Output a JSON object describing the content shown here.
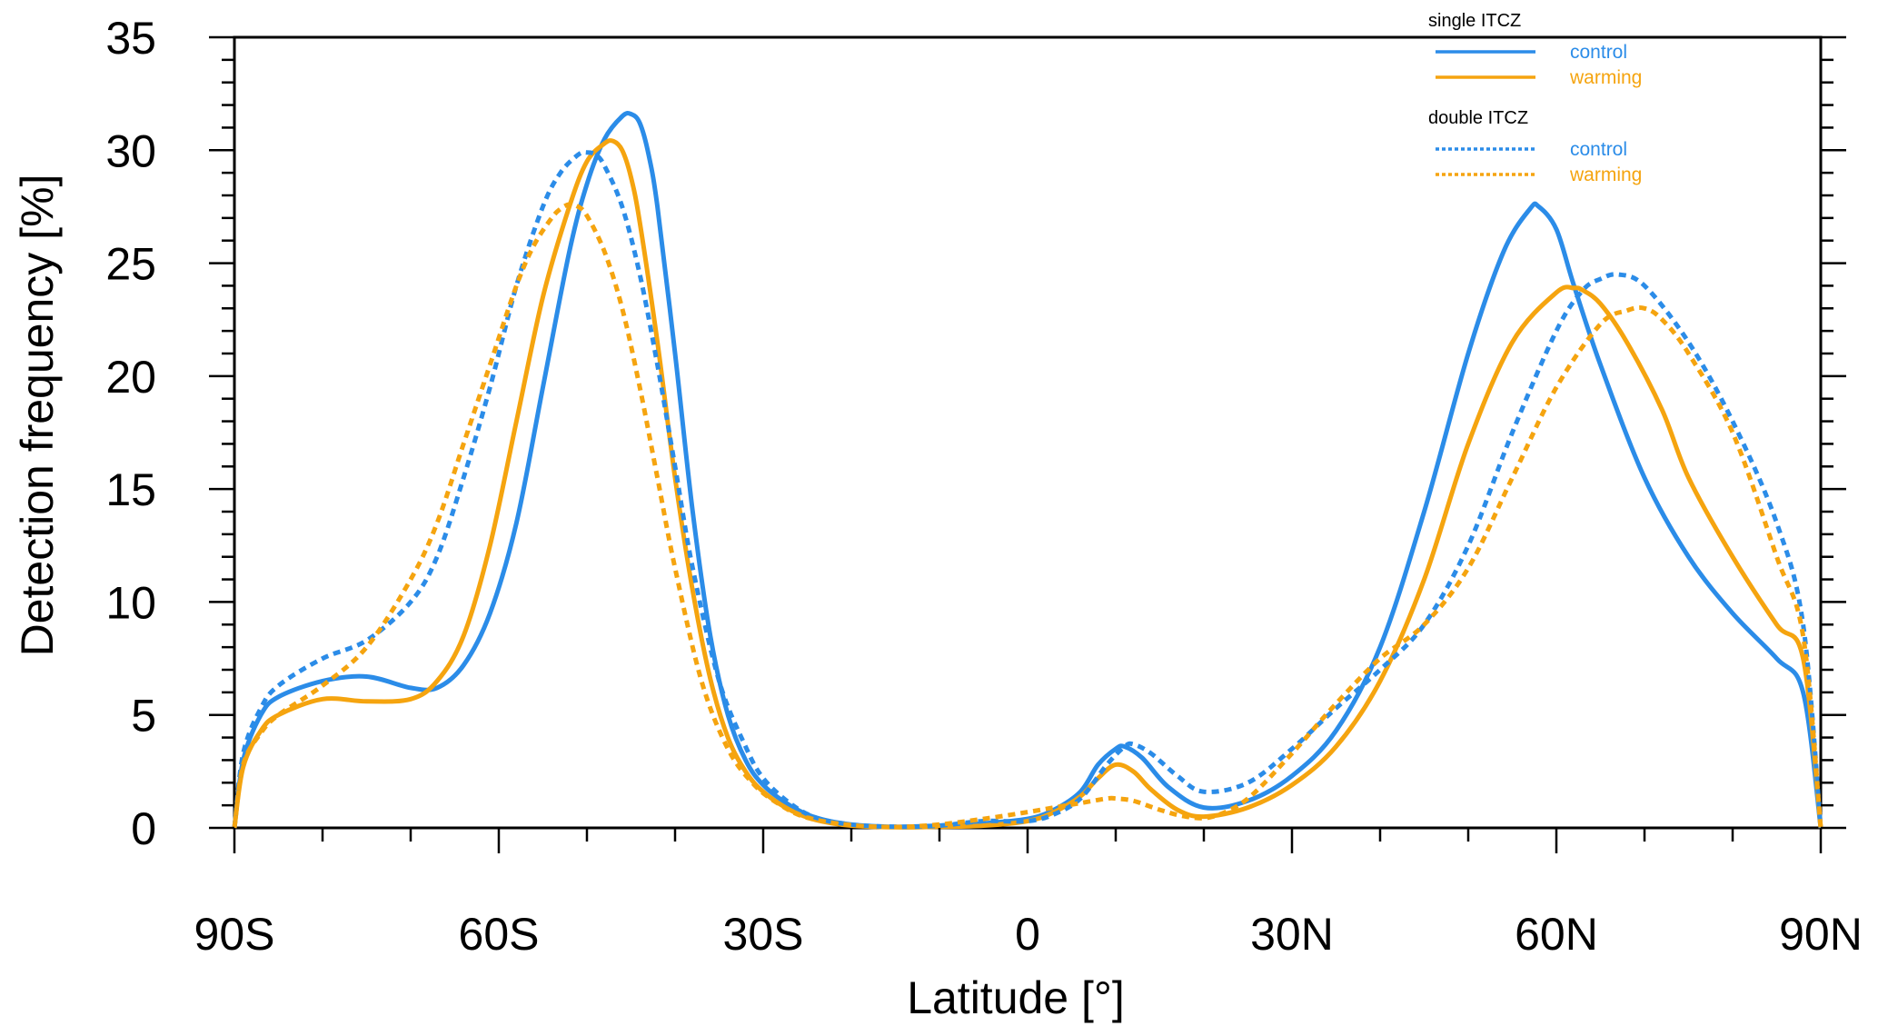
{
  "chart_data": {
    "type": "line",
    "xlabel": "Latitude [°]",
    "ylabel": "Detection frequency [%]",
    "xlim": [
      -90,
      90
    ],
    "ylim": [
      0,
      35
    ],
    "x_ticks": [
      {
        "value": -90,
        "label": "90S"
      },
      {
        "value": -60,
        "label": "60S"
      },
      {
        "value": -30,
        "label": "30S"
      },
      {
        "value": 0,
        "label": "0"
      },
      {
        "value": 30,
        "label": "30N"
      },
      {
        "value": 60,
        "label": "60N"
      },
      {
        "value": 90,
        "label": "90N"
      }
    ],
    "y_ticks": [
      0,
      5,
      10,
      15,
      20,
      25,
      30,
      35
    ],
    "grid": false,
    "legend_position": "top-right",
    "legend_groups": [
      {
        "title": "single ITCZ",
        "entries": [
          "control",
          "warming"
        ]
      },
      {
        "title": "double ITCZ",
        "entries": [
          "control",
          "warming"
        ]
      }
    ],
    "colors": {
      "control": "#2b8ce8",
      "warming": "#f5a40f"
    },
    "series": [
      {
        "group": "single ITCZ",
        "name": "control",
        "style": "solid",
        "color": "#2b8ce8",
        "x": [
          -90,
          -89,
          -87,
          -85,
          -80,
          -75,
          -70,
          -67,
          -64,
          -61,
          -58,
          -55,
          -52,
          -50,
          -48,
          -46,
          -45,
          -44,
          -43,
          -42,
          -40,
          -38,
          -36,
          -34,
          -32,
          -30,
          -27,
          -24,
          -20,
          -15,
          -10,
          -5,
          0,
          3,
          6,
          8,
          10,
          11,
          13,
          16,
          20,
          25,
          30,
          35,
          40,
          45,
          50,
          54,
          57,
          58,
          60,
          62,
          65,
          70,
          75,
          80,
          85,
          88,
          90
        ],
        "y": [
          0,
          3.0,
          5.0,
          5.8,
          6.5,
          6.7,
          6.2,
          6.2,
          7.2,
          9.5,
          13.5,
          19.5,
          25.5,
          28.5,
          30.5,
          31.5,
          31.6,
          31.2,
          29.8,
          27.5,
          21.0,
          14.0,
          8.5,
          5.0,
          3.0,
          1.9,
          1.0,
          0.45,
          0.15,
          0.05,
          0.1,
          0.2,
          0.4,
          0.8,
          1.6,
          2.8,
          3.5,
          3.6,
          3.1,
          1.8,
          0.9,
          1.2,
          2.3,
          4.3,
          8.0,
          14.0,
          21.0,
          25.5,
          27.4,
          27.5,
          26.5,
          24.0,
          20.5,
          15.5,
          12.0,
          9.5,
          7.5,
          6.0,
          0
        ]
      },
      {
        "group": "single ITCZ",
        "name": "warming",
        "style": "solid",
        "color": "#f5a40f",
        "x": [
          -90,
          -89,
          -87,
          -85,
          -80,
          -75,
          -70,
          -67,
          -64,
          -61,
          -58,
          -55,
          -52,
          -50,
          -48,
          -47,
          -46,
          -45,
          -44,
          -42,
          -40,
          -38,
          -36,
          -34,
          -32,
          -30,
          -27,
          -24,
          -20,
          -15,
          -10,
          -5,
          0,
          3,
          6,
          8,
          10,
          12,
          14,
          17,
          20,
          25,
          30,
          35,
          40,
          45,
          50,
          55,
          60,
          62,
          63,
          65,
          68,
          72,
          75,
          80,
          85,
          88,
          90
        ],
        "y": [
          0,
          2.7,
          4.3,
          5.0,
          5.7,
          5.6,
          5.7,
          6.5,
          8.5,
          12.5,
          18.0,
          23.5,
          27.5,
          29.5,
          30.3,
          30.4,
          30.0,
          28.8,
          26.8,
          21.5,
          15.5,
          10.5,
          6.6,
          4.0,
          2.5,
          1.6,
          0.8,
          0.35,
          0.1,
          0.03,
          0.05,
          0.1,
          0.3,
          0.7,
          1.4,
          2.2,
          2.8,
          2.5,
          1.7,
          0.8,
          0.5,
          0.9,
          1.9,
          3.6,
          6.5,
          11.0,
          17.0,
          21.5,
          23.7,
          23.9,
          23.8,
          23.2,
          21.5,
          18.5,
          15.5,
          12.0,
          9.0,
          7.5,
          0
        ]
      },
      {
        "group": "double ITCZ",
        "name": "control",
        "style": "dashed",
        "color": "#2b8ce8",
        "x": [
          -90,
          -89,
          -87,
          -85,
          -80,
          -75,
          -70,
          -67,
          -64,
          -61,
          -58,
          -55,
          -53,
          -51,
          -50,
          -49,
          -48,
          -46,
          -44,
          -42,
          -40,
          -38,
          -35,
          -32,
          -30,
          -27,
          -24,
          -20,
          -15,
          -10,
          -5,
          0,
          3,
          6,
          9,
          11,
          12,
          14,
          17,
          20,
          25,
          30,
          35,
          40,
          45,
          50,
          55,
          60,
          63,
          65,
          67,
          70,
          75,
          80,
          85,
          88,
          90
        ],
        "y": [
          0,
          3.3,
          5.3,
          6.3,
          7.5,
          8.3,
          10.0,
          12.0,
          15.5,
          19.5,
          24.0,
          27.5,
          29.0,
          29.8,
          29.9,
          29.8,
          29.3,
          27.5,
          24.5,
          20.5,
          16.0,
          11.5,
          6.5,
          3.6,
          2.2,
          1.1,
          0.45,
          0.15,
          0.05,
          0.1,
          0.3,
          0.3,
          0.6,
          1.3,
          2.8,
          3.6,
          3.7,
          3.3,
          2.3,
          1.6,
          2.0,
          3.5,
          5.3,
          7.0,
          9.0,
          12.5,
          17.5,
          22.0,
          23.8,
          24.3,
          24.5,
          24.0,
          21.5,
          18.0,
          13.5,
          9.0,
          0
        ]
      },
      {
        "group": "double ITCZ",
        "name": "warming",
        "style": "dashed",
        "color": "#f5a40f",
        "x": [
          -90,
          -89,
          -87,
          -85,
          -80,
          -75,
          -70,
          -67,
          -64,
          -61,
          -58,
          -56,
          -54,
          -53,
          -52,
          -51,
          -50,
          -48,
          -46,
          -44,
          -42,
          -40,
          -37,
          -34,
          -31,
          -28,
          -25,
          -20,
          -15,
          -10,
          -5,
          0,
          3,
          6,
          9,
          10,
          12,
          15,
          18,
          21,
          25,
          30,
          35,
          40,
          45,
          50,
          55,
          60,
          65,
          68,
          70,
          72,
          75,
          80,
          85,
          88,
          90
        ],
        "y": [
          0,
          2.8,
          4.2,
          5.0,
          6.3,
          8.0,
          11.0,
          13.5,
          17.0,
          20.5,
          24.0,
          25.8,
          27.0,
          27.4,
          27.6,
          27.5,
          27.1,
          25.5,
          23.0,
          19.5,
          15.5,
          11.5,
          6.5,
          3.5,
          1.9,
          1.0,
          0.45,
          0.12,
          0.04,
          0.15,
          0.4,
          0.7,
          0.9,
          1.1,
          1.3,
          1.3,
          1.2,
          0.8,
          0.5,
          0.5,
          1.3,
          3.3,
          5.5,
          7.5,
          9.0,
          11.5,
          15.5,
          19.5,
          22.3,
          22.9,
          23.0,
          22.5,
          21.0,
          17.5,
          12.0,
          8.5,
          0
        ]
      }
    ]
  }
}
